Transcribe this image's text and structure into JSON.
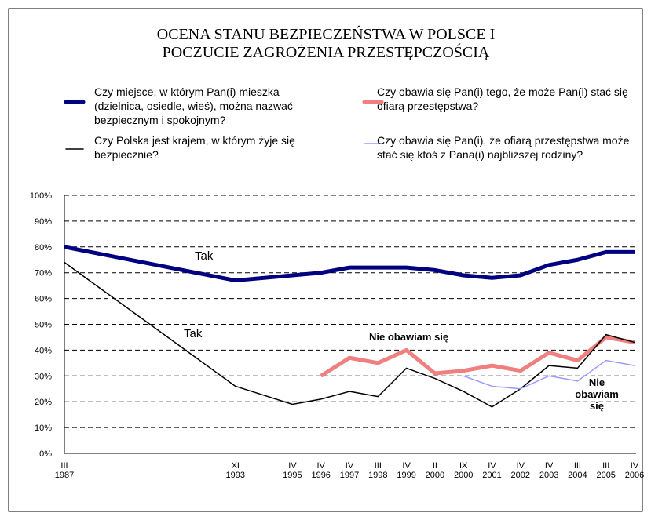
{
  "chart_data": {
    "type": "line",
    "title": "OCENA STANU BEZPIECZEŃSTWA W POLSCE I POCZUCIE ZAGROŻENIA PRZESTĘPCZOŚCIĄ",
    "categories": [
      [
        "III",
        "1987"
      ],
      [
        "XI",
        "1993"
      ],
      [
        "IV",
        "1995"
      ],
      [
        "IV",
        "1996"
      ],
      [
        "IV",
        "1997"
      ],
      [
        "III",
        "1998"
      ],
      [
        "IV",
        "1999"
      ],
      [
        "II",
        "2000"
      ],
      [
        "IX",
        "2000"
      ],
      [
        "IV",
        "2001"
      ],
      [
        "IV",
        "2002"
      ],
      [
        "IV",
        "2003"
      ],
      [
        "III",
        "2004"
      ],
      [
        "III",
        "2005"
      ],
      [
        "IV",
        "2006"
      ]
    ],
    "series": [
      {
        "name": "Czy miejsce, w którym Pan(i) mieszka (dzielnica, osiedle, wieś), można nazwać bezpiecznym i spokojnym?",
        "color": "#000080",
        "values": [
          80,
          67,
          69,
          70,
          72,
          72,
          72,
          71,
          69,
          68,
          69,
          73,
          75,
          78,
          78
        ]
      },
      {
        "name": "Czy obawia się Pan(i) tego, że może Pan(i) stać się ofiarą przestępstwa?",
        "color": "#f08080",
        "values": [
          null,
          null,
          null,
          30,
          37,
          35,
          40,
          31,
          32,
          34,
          32,
          39,
          36,
          45,
          43
        ]
      },
      {
        "name": "Czy Polska jest krajem, w którym żyje się bezpiecznie?",
        "color": "#000000",
        "values": [
          74,
          26,
          19,
          21,
          24,
          22,
          33,
          29,
          24,
          18,
          25,
          34,
          33,
          46,
          43
        ]
      },
      {
        "name": "Czy obawia się Pan(i), że ofiarą przestępstwa może stać się ktoś z Pana(i) najbliższej rodziny?",
        "color": "#9999ff",
        "values": [
          null,
          null,
          null,
          null,
          null,
          null,
          null,
          null,
          30,
          26,
          25,
          30,
          28,
          36,
          34
        ]
      }
    ],
    "annotations": [
      "Tak",
      "Tak",
      "Nie obawiam się",
      "Nie obawiam się"
    ],
    "ylim": [
      0,
      100
    ],
    "yticks": [
      {
        "value": 0,
        "label": "0%"
      },
      {
        "value": 10,
        "label": "10%"
      },
      {
        "value": 20,
        "label": "20%"
      },
      {
        "value": 30,
        "label": "30%"
      },
      {
        "value": 40,
        "label": "40%"
      },
      {
        "value": 50,
        "label": "50%"
      },
      {
        "value": 60,
        "label": "60%"
      },
      {
        "value": 70,
        "label": "70%"
      },
      {
        "value": 80,
        "label": "80%"
      },
      {
        "value": 90,
        "label": "90%"
      },
      {
        "value": 100,
        "label": "100%"
      }
    ],
    "grid": true
  }
}
